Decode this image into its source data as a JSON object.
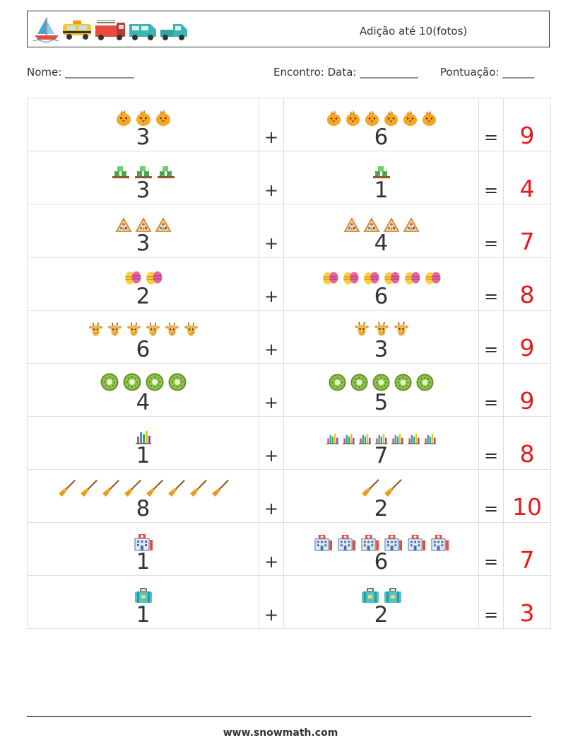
{
  "header": {
    "title": "Adição até 10(fotos)",
    "decoration_icons": [
      "sailboat-icon",
      "taxi-icon",
      "fire-truck-icon",
      "van-icon",
      "pickup-truck-icon"
    ]
  },
  "fields": {
    "name": "Nome: _____________",
    "meeting": "Encontro: Data: ___________",
    "score": "Pontuação: ______"
  },
  "symbols": {
    "plus": "+",
    "equals": "="
  },
  "problems": [
    {
      "left": {
        "value": "3",
        "icon": "chick-icon",
        "count": 3
      },
      "right": {
        "value": "6",
        "icon": "chick-icon",
        "count": 6
      },
      "answer": "9"
    },
    {
      "left": {
        "value": "3",
        "icon": "pallet-icon",
        "count": 3
      },
      "right": {
        "value": "1",
        "icon": "pallet-icon",
        "count": 1
      },
      "answer": "4"
    },
    {
      "left": {
        "value": "3",
        "icon": "pizza-slice-icon",
        "count": 3
      },
      "right": {
        "value": "4",
        "icon": "pizza-slice-icon",
        "count": 4
      },
      "answer": "7"
    },
    {
      "left": {
        "value": "2",
        "icon": "easter-eggs-icon",
        "count": 2
      },
      "right": {
        "value": "6",
        "icon": "easter-eggs-icon",
        "count": 6
      },
      "answer": "8"
    },
    {
      "left": {
        "value": "6",
        "icon": "giraffe-icon",
        "count": 6
      },
      "right": {
        "value": "3",
        "icon": "giraffe-icon",
        "count": 3
      },
      "answer": "9"
    },
    {
      "left": {
        "value": "4",
        "icon": "kiwi-icon",
        "count": 4
      },
      "right": {
        "value": "5",
        "icon": "kiwi-icon",
        "count": 5
      },
      "answer": "9"
    },
    {
      "left": {
        "value": "1",
        "icon": "bar-chart-icon",
        "count": 1
      },
      "right": {
        "value": "7",
        "icon": "bar-chart-icon",
        "count": 7
      },
      "answer": "8"
    },
    {
      "left": {
        "value": "8",
        "icon": "broom-icon",
        "count": 8
      },
      "right": {
        "value": "2",
        "icon": "broom-icon",
        "count": 2
      },
      "answer": "10"
    },
    {
      "left": {
        "value": "1",
        "icon": "hospital-icon",
        "count": 1
      },
      "right": {
        "value": "6",
        "icon": "hospital-icon",
        "count": 6
      },
      "answer": "7"
    },
    {
      "left": {
        "value": "1",
        "icon": "suitcase-icon",
        "count": 1
      },
      "right": {
        "value": "2",
        "icon": "suitcase-icon",
        "count": 2
      },
      "answer": "3"
    }
  ],
  "footer": {
    "site": "www.snowmath.com"
  },
  "colors": {
    "answer": "#e8191a",
    "text": "#333333",
    "grid": "#dddddd"
  }
}
